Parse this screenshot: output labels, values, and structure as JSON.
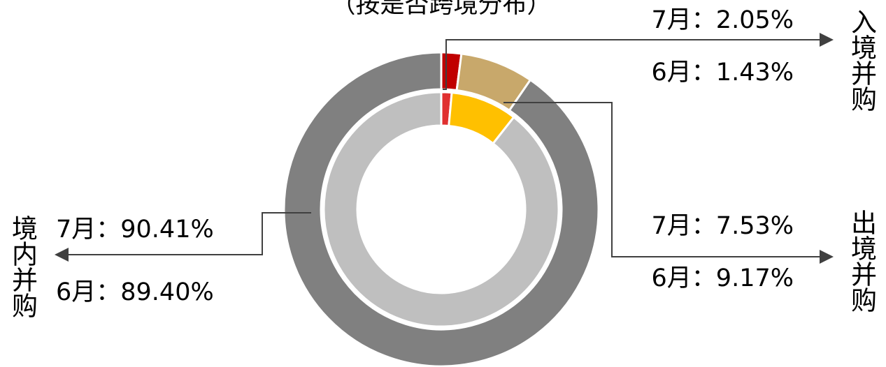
{
  "chart_data": {
    "type": "donut",
    "title": "（按是否跨境分布）",
    "categories": [
      "入境并购",
      "出境并购",
      "境内并购"
    ],
    "series": [
      {
        "values": [
          2.05,
          7.53,
          90.41
        ],
        "value_labels": [
          "7月：2.05%",
          "7月：7.53%",
          "7月：90.41%"
        ],
        "colors": [
          "#c00000",
          "#c8a86b",
          "#808080"
        ]
      },
      {
        "values": [
          1.43,
          9.17,
          89.4
        ],
        "value_labels": [
          "6月：1.43%",
          "6月：9.17%",
          "6月：89.40%"
        ],
        "colors": [
          "#e03030",
          "#ffc000",
          "#bfbfbf"
        ]
      }
    ]
  }
}
